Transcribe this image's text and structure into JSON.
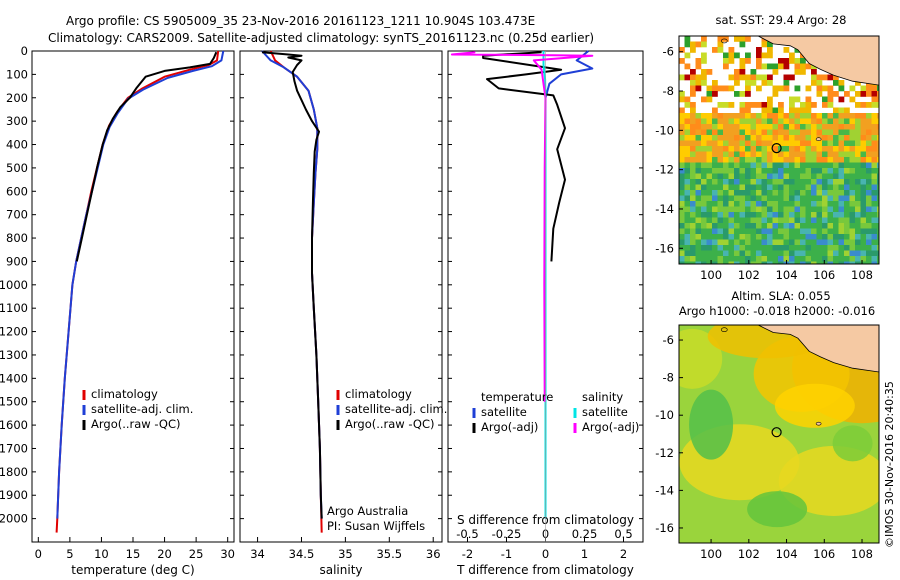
{
  "header": {
    "line1": "Argo profile: CS 5905009_35 23-Nov-2016 20161123_1211 10.904S 103.473E",
    "line2": "Climatology: CARS2009. Satellite-adjusted climatology: synTS_20161123.nc (0.25d earlier)"
  },
  "colors": {
    "climatology": "#e00000",
    "satellite": "#1f3fd6",
    "argo": "#000000",
    "sat_s": "#00e5e5",
    "argo_s": "#ff00ff"
  },
  "chart_data": [
    {
      "id": "temperature",
      "type": "line",
      "xlabel": "temperature (deg C)",
      "ylabel": "",
      "xlim": [
        -1,
        31
      ],
      "ylim": [
        2100,
        0
      ],
      "xticks": [
        0,
        5,
        10,
        15,
        20,
        25,
        30
      ],
      "yticks": [
        0,
        100,
        200,
        300,
        400,
        500,
        600,
        700,
        800,
        900,
        1000,
        1100,
        1200,
        1300,
        1400,
        1500,
        1600,
        1700,
        1800,
        1900,
        2000
      ],
      "legend": [
        "climatology",
        "satellite-adj. clim.",
        "Argo(..raw -QC)"
      ],
      "series": [
        {
          "name": "climatology",
          "color": "#e00000",
          "points": [
            [
              28.5,
              0
            ],
            [
              28.3,
              40
            ],
            [
              27,
              60
            ],
            [
              24,
              80
            ],
            [
              20,
              110
            ],
            [
              16.5,
              160
            ],
            [
              14.2,
              200
            ],
            [
              12.5,
              260
            ],
            [
              11.2,
              320
            ],
            [
              10.2,
              400
            ],
            [
              9.3,
              500
            ],
            [
              8.4,
              600
            ],
            [
              7.6,
              700
            ],
            [
              6.8,
              800
            ],
            [
              6,
              900
            ],
            [
              5.4,
              1000
            ],
            [
              4.8,
              1200
            ],
            [
              4.2,
              1400
            ],
            [
              3.7,
              1600
            ],
            [
              3.3,
              1800
            ],
            [
              3,
              2000
            ],
            [
              2.9,
              2060
            ]
          ]
        },
        {
          "name": "satellite-adj. clim.",
          "color": "#1f3fd6",
          "points": [
            [
              29.3,
              0
            ],
            [
              29,
              40
            ],
            [
              27.5,
              65
            ],
            [
              24.5,
              85
            ],
            [
              20.5,
              115
            ],
            [
              16.6,
              165
            ],
            [
              14.2,
              205
            ],
            [
              12.6,
              265
            ],
            [
              11.3,
              325
            ],
            [
              10.3,
              400
            ],
            [
              9.4,
              500
            ],
            [
              8.5,
              600
            ],
            [
              7.6,
              700
            ],
            [
              6.8,
              800
            ],
            [
              6,
              900
            ],
            [
              5.4,
              1000
            ],
            [
              4.8,
              1200
            ],
            [
              4.2,
              1400
            ],
            [
              3.7,
              1600
            ],
            [
              3.3,
              1800
            ],
            [
              3,
              2000
            ]
          ]
        },
        {
          "name": "Argo(..raw -QC)",
          "color": "#000000",
          "points": [
            [
              28.2,
              5
            ],
            [
              27.8,
              30
            ],
            [
              27.2,
              55
            ],
            [
              24,
              70
            ],
            [
              20,
              85
            ],
            [
              17,
              110
            ],
            [
              15.5,
              160
            ],
            [
              14.5,
              200
            ],
            [
              13,
              240
            ],
            [
              11.8,
              290
            ],
            [
              10.9,
              340
            ],
            [
              10.2,
              400
            ],
            [
              9.3,
              500
            ],
            [
              8.5,
              600
            ],
            [
              7.7,
              700
            ],
            [
              6.9,
              800
            ],
            [
              6.1,
              900
            ]
          ]
        }
      ]
    },
    {
      "id": "salinity",
      "type": "line",
      "xlabel": "salinity",
      "ylabel": "",
      "xlim": [
        33.8,
        36.1
      ],
      "ylim": [
        2100,
        0
      ],
      "xticks": [
        34,
        34.5,
        35,
        35.5,
        36
      ],
      "legend": [
        "climatology",
        "satellite-adj. clim.",
        "Argo(..raw -QC)"
      ],
      "annotations": [
        "Argo Australia",
        "PI: Susan Wijffels"
      ],
      "series": [
        {
          "name": "climatology",
          "color": "#e00000",
          "points": [
            [
              34.15,
              0
            ],
            [
              34.2,
              40
            ],
            [
              34.3,
              70
            ],
            [
              34.45,
              110
            ],
            [
              34.58,
              170
            ],
            [
              34.64,
              250
            ],
            [
              34.68,
              330
            ],
            [
              34.68,
              420
            ],
            [
              34.66,
              520
            ],
            [
              34.64,
              650
            ],
            [
              34.62,
              800
            ],
            [
              34.62,
              950
            ],
            [
              34.64,
              1100
            ],
            [
              34.67,
              1300
            ],
            [
              34.69,
              1500
            ],
            [
              34.71,
              1700
            ],
            [
              34.72,
              1900
            ],
            [
              34.73,
              2060
            ]
          ]
        },
        {
          "name": "satellite-adj. clim.",
          "color": "#1f3fd6",
          "points": [
            [
              34.05,
              0
            ],
            [
              34.15,
              40
            ],
            [
              34.3,
              70
            ],
            [
              34.45,
              110
            ],
            [
              34.58,
              170
            ],
            [
              34.64,
              250
            ],
            [
              34.68,
              330
            ],
            [
              34.68,
              420
            ],
            [
              34.66,
              520
            ],
            [
              34.64,
              650
            ],
            [
              34.62,
              800
            ],
            [
              34.62,
              950
            ],
            [
              34.64,
              1100
            ],
            [
              34.67,
              1300
            ],
            [
              34.69,
              1500
            ],
            [
              34.71,
              1700
            ],
            [
              34.72,
              1900
            ],
            [
              34.73,
              2000
            ]
          ]
        },
        {
          "name": "Argo(..raw -QC)",
          "color": "#000000",
          "points": [
            [
              34.05,
              5
            ],
            [
              34.35,
              15
            ],
            [
              34.5,
              20
            ],
            [
              34.35,
              28
            ],
            [
              34.5,
              40
            ],
            [
              34.45,
              60
            ],
            [
              34.4,
              90
            ],
            [
              34.42,
              130
            ],
            [
              34.45,
              170
            ],
            [
              34.5,
              210
            ],
            [
              34.55,
              250
            ],
            [
              34.62,
              300
            ],
            [
              34.7,
              345
            ],
            [
              34.67,
              380
            ],
            [
              34.65,
              430
            ],
            [
              34.64,
              520
            ],
            [
              34.63,
              650
            ],
            [
              34.62,
              800
            ],
            [
              34.62,
              950
            ],
            [
              34.64,
              1100
            ],
            [
              34.67,
              1300
            ],
            [
              34.69,
              1500
            ],
            [
              34.71,
              1700
            ],
            [
              34.72,
              1900
            ],
            [
              34.73,
              2000
            ]
          ]
        }
      ]
    },
    {
      "id": "difference",
      "type": "line",
      "xlabel": "T difference from climatology",
      "xlabel_top": "S difference from climatology",
      "xlim": [
        -2.5,
        2.5
      ],
      "ylim": [
        2100,
        0
      ],
      "xticks": [
        -2,
        -1,
        0,
        1,
        2
      ],
      "xticks_top": [
        -0.5,
        -0.25,
        0,
        0.25,
        0.5
      ],
      "legend_left_title": "temperature",
      "legend_left": [
        "satellite",
        "Argo(-adj)"
      ],
      "legend_right_title": "salinity",
      "legend_right": [
        "satellite",
        "Argo(-adj)"
      ],
      "series": [
        {
          "name": "T satellite",
          "color": "#1f3fd6",
          "points": [
            [
              1.1,
              0
            ],
            [
              0.8,
              40
            ],
            [
              1.2,
              75
            ],
            [
              0.4,
              100
            ],
            [
              0.1,
              140
            ],
            [
              0,
              200
            ],
            [
              0,
              400
            ],
            [
              0,
              1000
            ],
            [
              0,
              2000
            ]
          ]
        },
        {
          "name": "T Argo(-adj)",
          "color": "#000000",
          "points": [
            [
              -0.1,
              5
            ],
            [
              -1.6,
              20
            ],
            [
              -1.6,
              30
            ],
            [
              0.4,
              80
            ],
            [
              -0.5,
              100
            ],
            [
              -1.5,
              120
            ],
            [
              -1.2,
              160
            ],
            [
              0.2,
              190
            ],
            [
              0.3,
              230
            ],
            [
              0.5,
              330
            ],
            [
              0.3,
              420
            ],
            [
              0.5,
              550
            ],
            [
              0.35,
              650
            ],
            [
              0.2,
              760
            ],
            [
              0.15,
              900
            ]
          ]
        },
        {
          "name": "S satellite",
          "color": "#00e5e5",
          "points": [
            [
              -0.05,
              0
            ],
            [
              -0.05,
              60
            ],
            [
              -0.01,
              120
            ],
            [
              0,
              200
            ],
            [
              0,
              400
            ],
            [
              0,
              1000
            ],
            [
              0,
              2000
            ]
          ]
        },
        {
          "name": "S Argo(-adj)",
          "color": "#ff00ff",
          "points": [
            [
              -1.8,
              5
            ],
            [
              -2.4,
              15
            ],
            [
              0.2,
              18
            ],
            [
              1.2,
              20
            ],
            [
              -0.3,
              40
            ],
            [
              -0.1,
              80
            ],
            [
              -0.05,
              140
            ],
            [
              0,
              200
            ],
            [
              -0.02,
              500
            ],
            [
              -0.03,
              1000
            ],
            [
              -0.02,
              1500
            ]
          ]
        }
      ]
    }
  ],
  "map_sst": {
    "title": "sat. SST: 29.4  Argo: 28",
    "yticks": [
      -6,
      -8,
      -10,
      -12,
      -14,
      -16
    ],
    "xticks": [
      100,
      102,
      104,
      106,
      108
    ],
    "marker_lon": 103.473,
    "marker_lat": -10.904
  },
  "map_sla": {
    "title1": "Altim. SLA: 0.055",
    "title2": "Argo h1000: -0.018 h2000: -0.016",
    "yticks": [
      -6,
      -8,
      -10,
      -12,
      -14,
      -16
    ],
    "xticks": [
      100,
      102,
      104,
      106,
      108
    ],
    "marker_lon": 103.473,
    "marker_lat": -10.904
  },
  "credit": "©IMOS 30-Nov-2016 20:40:35"
}
